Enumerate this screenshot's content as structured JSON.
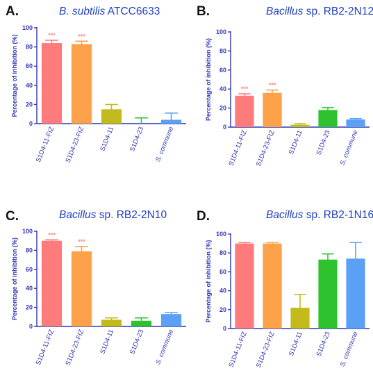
{
  "colors": [
    "#fd7b7b",
    "#fda24b",
    "#c2bb1b",
    "#2fc22f",
    "#5aa0f5"
  ],
  "chart_data": [
    {
      "type": "bar",
      "letter": "A.",
      "title": "B. subtilis ATCC6633",
      "title_italic": "B. subtilis",
      "title_rest": " ATCC6633",
      "ylabel": "Percentage of inhibition (%)",
      "xlabel": "",
      "ylim": [
        0,
        100
      ],
      "yticks": [
        0,
        20,
        40,
        60,
        80,
        100
      ],
      "categories": [
        "S1D4-11-FIZ",
        "S1D4-23-FIZ",
        "S1D4-11",
        "S1D4-23",
        "S. commune"
      ],
      "values": [
        84,
        83,
        15,
        0,
        4
      ],
      "errors": [
        3,
        3,
        5,
        6,
        7
      ],
      "significance": [
        "***",
        "***",
        "",
        "",
        ""
      ]
    },
    {
      "type": "bar",
      "letter": "B.",
      "title": "Bacillus sp. RB2-2N12",
      "title_italic": "Bacillus",
      "title_rest": " sp. RB2-2N12",
      "ylabel": "Percentage of inhibition (%)",
      "xlabel": "",
      "ylim": [
        0,
        100
      ],
      "yticks": [
        0,
        20,
        40,
        60,
        80,
        100
      ],
      "categories": [
        "S1D4-11-FIZ",
        "S1D4-23-FIZ",
        "S1D4-11",
        "S1D4-23",
        "S. commune"
      ],
      "values": [
        33,
        36,
        2.5,
        18,
        8
      ],
      "errors": [
        2,
        3,
        1,
        2.5,
        1
      ],
      "significance": [
        "***",
        "***",
        "",
        "",
        ""
      ]
    },
    {
      "type": "bar",
      "letter": "C.",
      "title": "Bacillus sp. RB2-2N10",
      "title_italic": "Bacillus",
      "title_rest": " sp. RB2-2N10",
      "ylabel": "Percentage of inhibition (%)",
      "xlabel": "",
      "ylim": [
        0,
        100
      ],
      "yticks": [
        0,
        20,
        40,
        60,
        80,
        100
      ],
      "categories": [
        "S1D4-11-FIZ",
        "S1D4-23-FIZ",
        "S1D4-11",
        "S1D4-23",
        "S. commune"
      ],
      "values": [
        90,
        79,
        7,
        6,
        13
      ],
      "errors": [
        1,
        5,
        2,
        3,
        1.5
      ],
      "significance": [
        "***",
        "***",
        "",
        "",
        ""
      ]
    },
    {
      "type": "bar",
      "letter": "D.",
      "title": "Bacillus sp. RB2-1N16",
      "title_italic": "Bacillus",
      "title_rest": " sp. RB2-1N16",
      "ylabel": "Percentage of inhibition (%)",
      "xlabel": "",
      "ylim": [
        0,
        100
      ],
      "yticks": [
        0,
        20,
        40,
        60,
        80,
        100
      ],
      "categories": [
        "S1D4-11-FIZ",
        "S1D4-23-FIZ",
        "S1D4-11",
        "S1D4-23",
        "S. commune"
      ],
      "values": [
        90,
        90,
        22,
        73,
        74
      ],
      "errors": [
        1,
        1,
        14,
        6,
        17
      ],
      "significance": [
        "",
        "",
        "",
        "",
        ""
      ]
    }
  ]
}
